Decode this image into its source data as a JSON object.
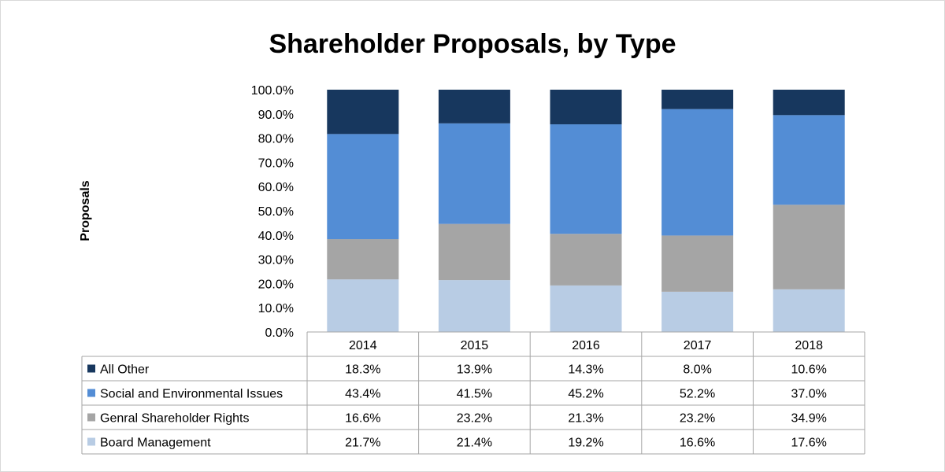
{
  "chart_data": {
    "type": "bar",
    "stacked": true,
    "title": "Shareholder Proposals, by Type",
    "ylabel": "Proposals",
    "xlabel": "",
    "ylim": [
      0,
      100
    ],
    "y_ticks": [
      "0.0%",
      "10.0%",
      "20.0%",
      "30.0%",
      "40.0%",
      "50.0%",
      "60.0%",
      "70.0%",
      "80.0%",
      "90.0%",
      "100.0%"
    ],
    "categories": [
      "2014",
      "2015",
      "2016",
      "2017",
      "2018"
    ],
    "series": [
      {
        "name": "Board Management",
        "color": "#b8cce4",
        "values": [
          21.7,
          21.4,
          19.2,
          16.6,
          17.6
        ],
        "labels": [
          "21.7%",
          "21.4%",
          "19.2%",
          "16.6%",
          "17.6%"
        ]
      },
      {
        "name": "Genral Shareholder Rights",
        "color": "#a5a5a5",
        "values": [
          16.6,
          23.2,
          21.3,
          23.2,
          34.9
        ],
        "labels": [
          "16.6%",
          "23.2%",
          "21.3%",
          "23.2%",
          "34.9%"
        ]
      },
      {
        "name": "Social and Environmental Issues",
        "color": "#538dd5",
        "values": [
          43.4,
          41.5,
          45.2,
          52.2,
          37.0
        ],
        "labels": [
          "43.4%",
          "41.5%",
          "45.2%",
          "52.2%",
          "37.0%"
        ]
      },
      {
        "name": "All Other",
        "color": "#17375e",
        "values": [
          18.3,
          13.9,
          14.3,
          8.0,
          10.6
        ],
        "labels": [
          "18.3%",
          "13.9%",
          "14.3%",
          "8.0%",
          "10.6%"
        ]
      }
    ],
    "legend_placement": "data-table-left",
    "grid": false
  }
}
